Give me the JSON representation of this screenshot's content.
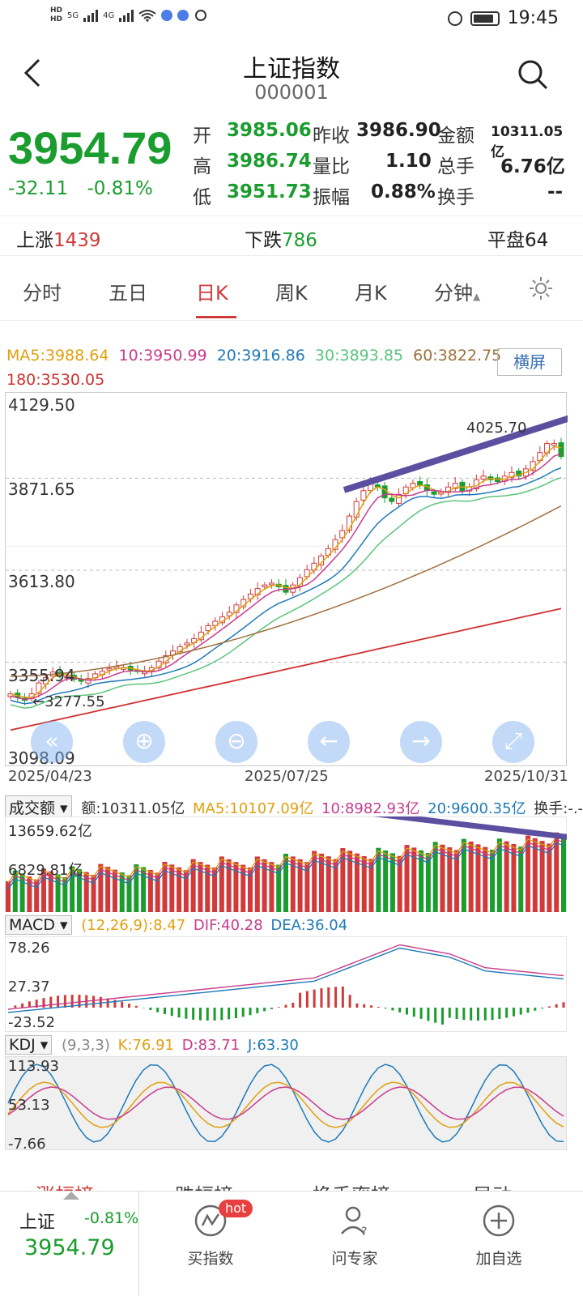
{
  "status_bar": {
    "time": "19:45",
    "net1": "5G",
    "net2": "4G",
    "hd1": "HD",
    "hd2": "HD"
  },
  "header": {
    "title": "上证指数",
    "code": "000001"
  },
  "quote": {
    "price": "3954.79",
    "change": "-32.11",
    "change_pct": "-0.81%",
    "fields": [
      {
        "label": "开",
        "value": "3985.06"
      },
      {
        "label": "昨收",
        "value": "3986.90"
      },
      {
        "label": "金额",
        "value": "10311.05亿"
      },
      {
        "label": "高",
        "value": "3986.74"
      },
      {
        "label": "量比",
        "value": "1.10"
      },
      {
        "label": "总手",
        "value": "6.76亿"
      },
      {
        "label": "低",
        "value": "3951.73"
      },
      {
        "label": "振幅",
        "value": "0.88%"
      },
      {
        "label": "换手",
        "value": "--"
      }
    ]
  },
  "breadth": {
    "up_label": "上涨",
    "up_value": "1439",
    "down_label": "下跌",
    "down_value": "786",
    "flat_label": "平盘",
    "flat_value": "64"
  },
  "tabs": [
    "分时",
    "五日",
    "日K",
    "周K",
    "月K",
    "分钟"
  ],
  "active_tab": "日K",
  "ma_legend": {
    "ma5": "MA5:3988.64",
    "ma10": "10:3950.99",
    "ma20": "20:3916.86",
    "ma30": "30:3893.85",
    "ma60": "60:3822.75",
    "ma180": "180:3530.05"
  },
  "landscape_button": "横屏",
  "chart_data": [
    {
      "type": "candlestick",
      "yticks": [
        "4129.50",
        "3871.65",
        "3613.80",
        "3355.94",
        "3098.09"
      ],
      "ylim": [
        3098.09,
        4129.5
      ],
      "x_labels": [
        "2025/04/23",
        "2025/07/25",
        "2025/10/31"
      ],
      "annotations": {
        "high": "4025.70",
        "low": "3277.55"
      },
      "close_path": [
        3300,
        3290,
        3282,
        3300,
        3330,
        3345,
        3360,
        3352,
        3348,
        3340,
        3335,
        3342,
        3355,
        3362,
        3370,
        3375,
        3372,
        3366,
        3362,
        3360,
        3372,
        3390,
        3405,
        3418,
        3430,
        3440,
        3452,
        3470,
        3488,
        3500,
        3512,
        3525,
        3545,
        3560,
        3575,
        3590,
        3600,
        3605,
        3595,
        3580,
        3600,
        3620,
        3642,
        3660,
        3680,
        3700,
        3725,
        3750,
        3790,
        3830,
        3860,
        3880,
        3870,
        3840,
        3830,
        3850,
        3870,
        3880,
        3875,
        3860,
        3850,
        3855,
        3870,
        3880,
        3860,
        3870,
        3890,
        3900,
        3890,
        3885,
        3900,
        3910,
        3900,
        3920,
        3940,
        3965,
        3990,
        3990,
        3954
      ]
    },
    {
      "type": "bar",
      "title": "成交额",
      "legend": [
        "额:10311.05亿",
        "MA5:10107.09亿",
        "10:8982.93亿",
        "20:9600.35亿",
        "换手:-.-%"
      ],
      "yticks": [
        "13659.62亿",
        "6829.81亿"
      ]
    },
    {
      "type": "bar",
      "title": "MACD",
      "legend": [
        "(12,26,9):8.47",
        "DIF:40.28",
        "DEA:36.04"
      ],
      "yticks": [
        "78.26",
        "27.37",
        "-23.52"
      ]
    },
    {
      "type": "line",
      "title": "KDJ",
      "legend": [
        "(9,3,3)",
        "K:76.91",
        "D:83.71",
        "J:63.30"
      ],
      "yticks": [
        "113.93",
        "53.13",
        "-7.66"
      ]
    }
  ],
  "list_tabs": [
    "涨幅榜",
    "跌幅榜",
    "换手率榜",
    "异动"
  ],
  "bottom_bar": {
    "stock_name": "上证",
    "stock_pct": "-0.81%",
    "stock_price": "3954.79",
    "items": [
      {
        "label": "买指数",
        "badge": "hot"
      },
      {
        "label": "问专家"
      },
      {
        "label": "加自选"
      }
    ]
  },
  "colors": {
    "up": "#d13a3a",
    "down": "#1a9c2e",
    "ma5": "#e0a010",
    "ma10": "#c83c8c",
    "ma20": "#1e7ab8",
    "ma30": "#5cc47c",
    "ma60": "#a0703c",
    "ma180": "#d03030",
    "trendline": "#5b4fa0"
  }
}
